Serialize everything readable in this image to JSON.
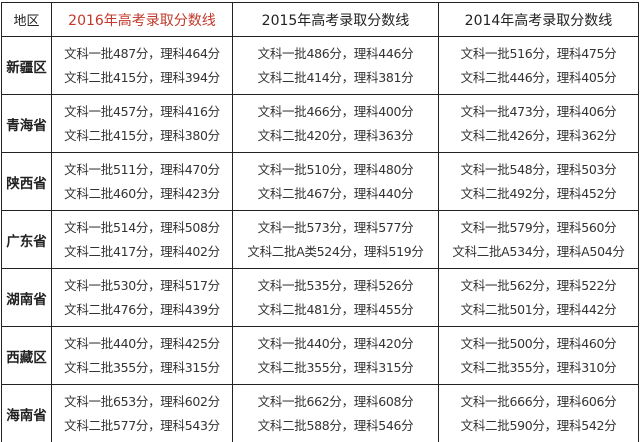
{
  "header": {
    "region": "地区",
    "col2016": "2016年高考录取分数线",
    "col2015": "2015年高考录取分数线",
    "col2014": "2014年高考录取分数线"
  },
  "colors": {
    "highlight_header": "#c0392b"
  },
  "rows": [
    {
      "region": "新疆区",
      "y2016": [
        "文科一批487分，理科464分",
        "文科二批415分，理科394分"
      ],
      "y2015": [
        "文科一批486分，理科446分",
        "文科二批414分，理科381分"
      ],
      "y2014": [
        "文科一批516分，理科475分",
        "文科二批446分，理科405分"
      ]
    },
    {
      "region": "青海省",
      "y2016": [
        "文科一批457分，理科416分",
        "文科二批415分，理科380分"
      ],
      "y2015": [
        "文科一批466分，理科400分",
        "文科二批420分，理科363分"
      ],
      "y2014": [
        "文科一批473分，理科406分",
        "文科二批426分，理科362分"
      ]
    },
    {
      "region": "陕西省",
      "y2016": [
        "文科一批511分，理科470分",
        "文科二批460分，理科423分"
      ],
      "y2015": [
        "文科一批510分，理科480分",
        "文科二批467分，理科440分"
      ],
      "y2014": [
        "文科一批548分，理科503分",
        "文科二批492分，理科452分"
      ]
    },
    {
      "region": "广东省",
      "y2016": [
        "文科一批514分，理科508分",
        "文科二批417分，理科402分"
      ],
      "y2015": [
        "文科一批573分，理科577分",
        "文科二批A类524分，理科519分"
      ],
      "y2014": [
        "文科一批579分，理科560分",
        "文科二批A534分，理科A504分"
      ]
    },
    {
      "region": "湖南省",
      "y2016": [
        "文科一批530分，理科517分",
        "文科二批476分，理科439分"
      ],
      "y2015": [
        "文科一批535分，理科526分",
        "文科二批481分，理科455分"
      ],
      "y2014": [
        "文科一批562分，理科522分",
        "文科二批501分，理科442分"
      ]
    },
    {
      "region": "西藏区",
      "y2016": [
        "文科一批440分，理科425分",
        "文科二批355分，理科315分"
      ],
      "y2015": [
        "文科一批440分，理科420分",
        "文科二批355分，理科315分"
      ],
      "y2014": [
        "文科一批500分，理科460分",
        "文科二批355分，理科310分"
      ]
    },
    {
      "region": "海南省",
      "y2016": [
        "文科一批653分，理科602分",
        "文科二批577分，理科543分"
      ],
      "y2015": [
        "文科一批662分，理科608分",
        "文科二批588分，理科546分"
      ],
      "y2014": [
        "文科一批666分，理科606分",
        "文科二批590分，理科542分"
      ]
    }
  ]
}
